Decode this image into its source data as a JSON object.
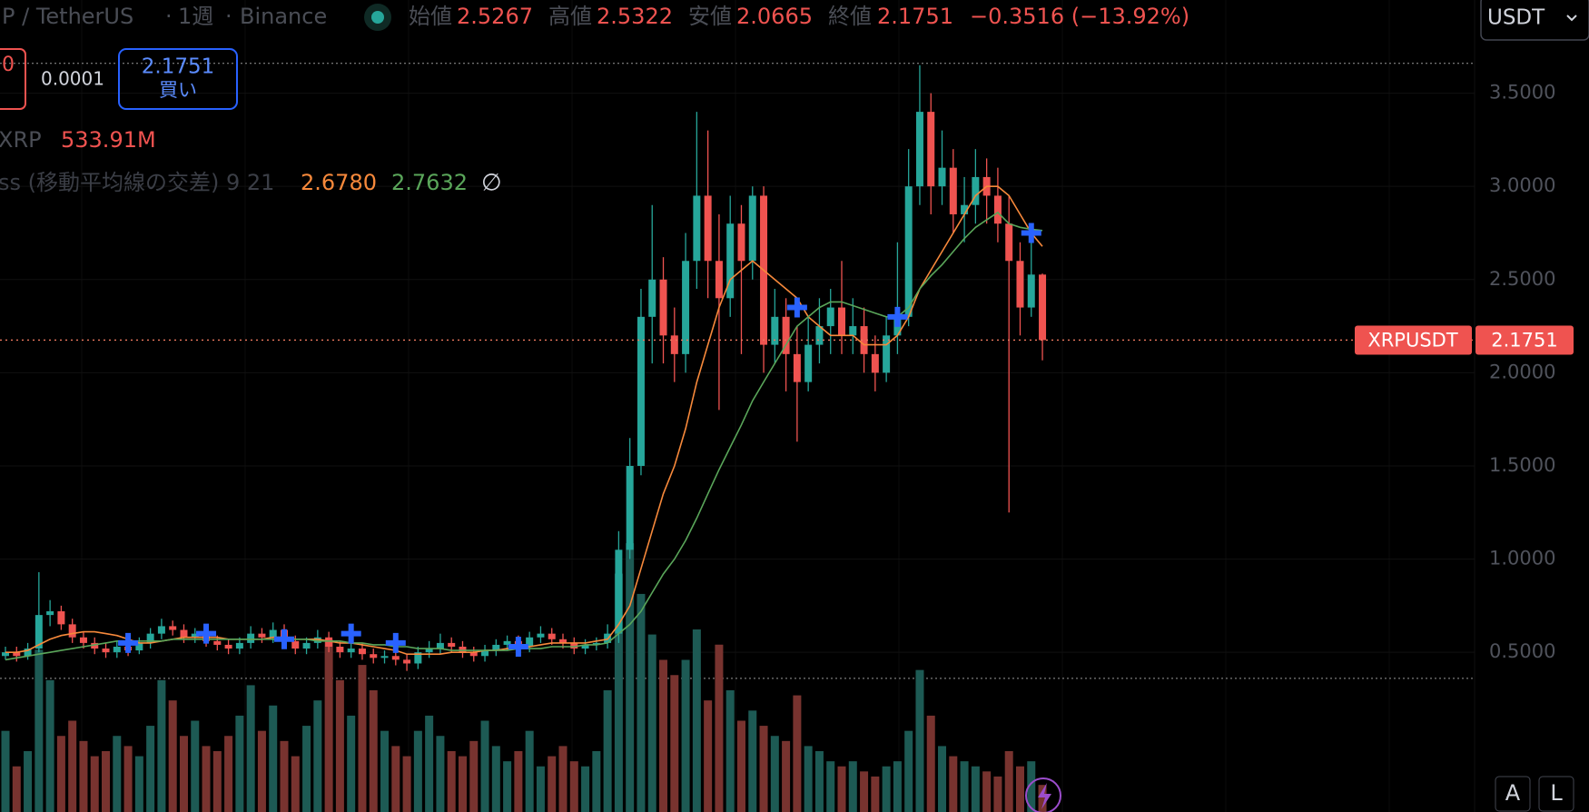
{
  "header": {
    "symbol": "P / TetherUS",
    "separator": "·",
    "interval": "1週",
    "exchange": "Binance",
    "open_label": "始値",
    "open": "2.5267",
    "high_label": "高値",
    "high": "2.5322",
    "low_label": "安値",
    "low": "2.0665",
    "close_label": "終値",
    "close": "2.1751",
    "change": "−0.3516 (−13.92%)"
  },
  "currency": "USDT",
  "trade": {
    "sell": "0",
    "spread": "0.0001",
    "buy_price": "2.1751",
    "buy_label": "買い"
  },
  "volume_legend": {
    "symbol": "XRP",
    "value": "533.91M"
  },
  "indicator_legend": {
    "name": "ss (移動平均線の交差) 9 21",
    "fast": "2.6780",
    "slow": "2.7632",
    "hide": "∅"
  },
  "price_label": {
    "symbol": "XRPUSDT",
    "price": "2.1751"
  },
  "buttons": [
    "A",
    "L"
  ],
  "chart_data": {
    "type": "candlestick",
    "open": [
      0.48,
      0.5,
      0.48,
      0.52,
      0.7,
      0.72,
      0.65,
      0.58,
      0.55,
      0.52,
      0.5,
      0.53,
      0.51,
      0.55,
      0.6,
      0.64,
      0.62,
      0.58,
      0.6,
      0.56,
      0.54,
      0.52,
      0.55,
      0.6,
      0.58,
      0.62,
      0.56,
      0.52,
      0.55,
      0.58,
      0.53,
      0.5,
      0.52,
      0.49,
      0.47,
      0.48,
      0.46,
      0.44,
      0.5,
      0.52,
      0.55,
      0.53,
      0.5,
      0.48,
      0.51,
      0.54,
      0.56,
      0.53,
      0.58,
      0.6,
      0.57,
      0.55,
      0.52,
      0.54,
      0.55,
      0.6,
      1.05,
      1.5,
      2.3,
      2.5,
      2.2,
      2.1,
      2.6,
      2.95,
      2.6,
      2.4,
      2.8,
      2.6,
      2.95,
      2.15,
      2.3,
      2.1,
      1.95,
      2.15,
      2.25,
      2.35,
      2.2,
      2.25,
      2.1,
      2.0,
      2.2,
      2.3,
      3.0,
      3.4,
      3.0,
      3.1,
      2.85,
      2.9,
      3.05,
      2.95,
      2.8,
      2.6,
      2.35,
      2.5267
    ],
    "high": [
      0.53,
      0.53,
      0.55,
      0.93,
      0.78,
      0.75,
      0.68,
      0.61,
      0.58,
      0.55,
      0.56,
      0.56,
      0.58,
      0.63,
      0.68,
      0.67,
      0.65,
      0.63,
      0.63,
      0.59,
      0.57,
      0.58,
      0.64,
      0.63,
      0.66,
      0.65,
      0.59,
      0.58,
      0.62,
      0.61,
      0.56,
      0.55,
      0.55,
      0.52,
      0.51,
      0.51,
      0.49,
      0.53,
      0.56,
      0.6,
      0.58,
      0.56,
      0.53,
      0.54,
      0.57,
      0.59,
      0.59,
      0.61,
      0.64,
      0.63,
      0.6,
      0.58,
      0.57,
      0.58,
      0.65,
      1.15,
      1.65,
      2.45,
      2.9,
      2.62,
      2.35,
      2.75,
      3.4,
      3.3,
      2.85,
      2.95,
      2.9,
      3.0,
      3.0,
      2.45,
      2.4,
      2.25,
      2.3,
      2.4,
      2.45,
      2.6,
      2.4,
      2.35,
      2.2,
      2.3,
      2.7,
      3.2,
      3.65,
      3.5,
      3.3,
      3.2,
      3.05,
      3.2,
      3.15,
      3.1,
      2.95,
      2.7,
      2.72,
      2.5322
    ],
    "low": [
      0.46,
      0.45,
      0.46,
      0.5,
      0.64,
      0.62,
      0.55,
      0.52,
      0.49,
      0.47,
      0.47,
      0.48,
      0.49,
      0.52,
      0.57,
      0.59,
      0.55,
      0.55,
      0.53,
      0.51,
      0.49,
      0.49,
      0.52,
      0.55,
      0.55,
      0.53,
      0.49,
      0.49,
      0.52,
      0.5,
      0.47,
      0.47,
      0.46,
      0.44,
      0.44,
      0.43,
      0.4,
      0.41,
      0.47,
      0.49,
      0.5,
      0.47,
      0.45,
      0.45,
      0.48,
      0.51,
      0.5,
      0.5,
      0.55,
      0.54,
      0.52,
      0.49,
      0.49,
      0.51,
      0.52,
      0.55,
      1.0,
      1.45,
      2.05,
      2.05,
      1.95,
      2.0,
      2.45,
      2.4,
      1.8,
      2.3,
      2.1,
      2.5,
      2.0,
      2.05,
      1.9,
      1.63,
      1.9,
      2.05,
      2.1,
      2.1,
      2.1,
      2.0,
      1.9,
      1.95,
      2.1,
      2.25,
      2.9,
      2.85,
      2.9,
      2.75,
      2.7,
      2.8,
      2.8,
      2.7,
      1.25,
      2.2,
      2.3,
      2.0665
    ],
    "close": [
      0.5,
      0.48,
      0.52,
      0.7,
      0.72,
      0.65,
      0.58,
      0.55,
      0.52,
      0.5,
      0.53,
      0.51,
      0.55,
      0.6,
      0.64,
      0.62,
      0.58,
      0.6,
      0.56,
      0.54,
      0.52,
      0.55,
      0.6,
      0.58,
      0.62,
      0.56,
      0.52,
      0.55,
      0.58,
      0.53,
      0.5,
      0.52,
      0.49,
      0.47,
      0.48,
      0.46,
      0.44,
      0.5,
      0.52,
      0.55,
      0.53,
      0.5,
      0.48,
      0.51,
      0.54,
      0.56,
      0.53,
      0.58,
      0.6,
      0.57,
      0.55,
      0.52,
      0.54,
      0.55,
      0.6,
      1.05,
      1.5,
      2.3,
      2.5,
      2.2,
      2.1,
      2.6,
      2.95,
      2.6,
      2.4,
      2.8,
      2.6,
      2.95,
      2.15,
      2.3,
      2.1,
      1.95,
      2.15,
      2.25,
      2.35,
      2.2,
      2.25,
      2.1,
      2.0,
      2.2,
      2.3,
      3.0,
      3.4,
      3.0,
      3.1,
      2.85,
      2.9,
      3.05,
      2.95,
      2.8,
      2.6,
      2.35,
      2.5267,
      2.1751
    ],
    "volume": [
      1600,
      900,
      1200,
      3200,
      2600,
      1500,
      1800,
      1400,
      1100,
      1200,
      1500,
      1300,
      1100,
      1700,
      2600,
      2200,
      1500,
      1800,
      1300,
      1200,
      1500,
      1900,
      2500,
      1600,
      2100,
      1400,
      1100,
      1700,
      2200,
      3400,
      2600,
      1900,
      2900,
      2400,
      1600,
      1300,
      1100,
      1600,
      1900,
      1500,
      1200,
      1100,
      1400,
      1800,
      1300,
      1000,
      1200,
      1600,
      900,
      1100,
      1300,
      1000,
      900,
      1200,
      2400,
      4700,
      5300,
      4300,
      3500,
      3000,
      2700,
      3000,
      3600,
      2200,
      3300,
      2400,
      1800,
      2000,
      1700,
      1500,
      1400,
      2300,
      1300,
      1200,
      1000,
      900,
      1000,
      800,
      700,
      900,
      1000,
      1600,
      2800,
      1900,
      1300,
      1100,
      1000,
      900,
      800,
      700,
      1200,
      900,
      1000,
      533.91
    ],
    "volume_ylim": [
      0,
      6000
    ],
    "ma_fast": {
      "color": "#f7893b",
      "values": [
        0.5,
        0.5,
        0.51,
        0.54,
        0.57,
        0.59,
        0.6,
        0.61,
        0.61,
        0.6,
        0.59,
        0.57,
        0.55,
        0.55,
        0.56,
        0.57,
        0.58,
        0.58,
        0.58,
        0.58,
        0.57,
        0.57,
        0.57,
        0.57,
        0.58,
        0.58,
        0.57,
        0.57,
        0.57,
        0.56,
        0.55,
        0.55,
        0.54,
        0.53,
        0.52,
        0.51,
        0.49,
        0.49,
        0.49,
        0.49,
        0.5,
        0.5,
        0.5,
        0.51,
        0.51,
        0.52,
        0.52,
        0.53,
        0.54,
        0.55,
        0.55,
        0.55,
        0.55,
        0.56,
        0.57,
        0.65,
        0.75,
        0.95,
        1.15,
        1.35,
        1.5,
        1.7,
        1.95,
        2.15,
        2.35,
        2.5,
        2.55,
        2.6,
        2.55,
        2.5,
        2.45,
        2.4,
        2.3,
        2.25,
        2.2,
        2.2,
        2.2,
        2.15,
        2.15,
        2.15,
        2.2,
        2.3,
        2.45,
        2.55,
        2.65,
        2.75,
        2.85,
        2.95,
        3.0,
        3.0,
        2.95,
        2.85,
        2.75,
        2.678
      ]
    },
    "ma_slow": {
      "color": "#5aa65a",
      "values": [
        0.46,
        0.47,
        0.48,
        0.49,
        0.5,
        0.51,
        0.52,
        0.53,
        0.54,
        0.55,
        0.56,
        0.56,
        0.56,
        0.56,
        0.56,
        0.57,
        0.57,
        0.57,
        0.57,
        0.57,
        0.57,
        0.57,
        0.57,
        0.57,
        0.57,
        0.57,
        0.57,
        0.57,
        0.56,
        0.56,
        0.56,
        0.55,
        0.55,
        0.54,
        0.54,
        0.53,
        0.53,
        0.52,
        0.52,
        0.52,
        0.51,
        0.51,
        0.51,
        0.51,
        0.51,
        0.51,
        0.52,
        0.52,
        0.52,
        0.53,
        0.53,
        0.53,
        0.54,
        0.54,
        0.55,
        0.6,
        0.65,
        0.72,
        0.82,
        0.92,
        1.0,
        1.1,
        1.22,
        1.35,
        1.48,
        1.6,
        1.72,
        1.85,
        1.95,
        2.05,
        2.15,
        2.25,
        2.3,
        2.35,
        2.38,
        2.38,
        2.36,
        2.34,
        2.32,
        2.3,
        2.3,
        2.35,
        2.45,
        2.52,
        2.58,
        2.65,
        2.72,
        2.78,
        2.82,
        2.86,
        2.8,
        2.78,
        2.77,
        2.7632
      ]
    },
    "crosses": [
      null,
      null,
      null,
      null,
      null,
      null,
      null,
      null,
      null,
      null,
      null,
      0.55,
      null,
      null,
      null,
      null,
      null,
      null,
      0.6,
      null,
      null,
      null,
      null,
      null,
      null,
      0.57,
      null,
      null,
      null,
      null,
      null,
      0.6,
      null,
      null,
      null,
      0.55,
      null,
      null,
      null,
      null,
      null,
      null,
      null,
      null,
      null,
      null,
      0.53,
      null,
      null,
      null,
      null,
      null,
      null,
      null,
      null,
      null,
      null,
      null,
      null,
      null,
      null,
      null,
      null,
      null,
      null,
      null,
      null,
      null,
      null,
      null,
      null,
      2.35,
      null,
      null,
      null,
      null,
      null,
      null,
      null,
      null,
      2.3,
      null,
      null,
      null,
      null,
      null,
      null,
      null,
      null,
      null,
      null,
      null,
      2.75,
      null
    ],
    "cross_color": "#2962ff",
    "up_color": "#26a69a",
    "down_color": "#ef5350",
    "volume_up_color": "#1d5a54",
    "volume_down_color": "#78332f",
    "range_high": 3.66,
    "range_low": 0.36,
    "ylim": [
      -0.357,
      4.0
    ],
    "yticks": [
      {
        "value": 0.5,
        "label": "0.5000"
      },
      {
        "value": 1.0,
        "label": "1.0000"
      },
      {
        "value": 1.5,
        "label": "1.5000"
      },
      {
        "value": 2.0,
        "label": "2.0000"
      },
      {
        "value": 2.5,
        "label": "2.5000"
      },
      {
        "value": 3.0,
        "label": "3.0000"
      },
      {
        "value": 3.5,
        "label": "3.5000"
      }
    ],
    "grid": true
  }
}
